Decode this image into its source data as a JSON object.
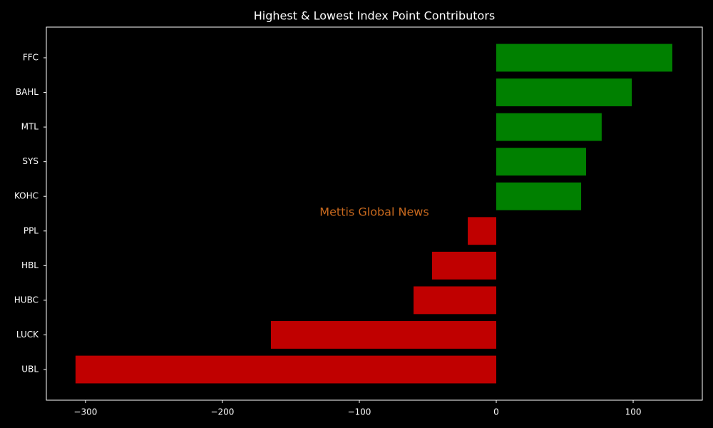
{
  "chart_data": {
    "type": "barh",
    "title": "Highest & Lowest Index Point Contributors",
    "annotation": "Mettis Global News",
    "categories": [
      "FFC",
      "BAHL",
      "MTL",
      "SYS",
      "KOHC",
      "PPL",
      "HBL",
      "HUBC",
      "LUCK",
      "UBL"
    ],
    "values": [
      128.6,
      99,
      77,
      65.6,
      62,
      -20.8,
      -46.9,
      -60.4,
      -164.6,
      -307.3
    ],
    "colors": [
      "#008000",
      "#008000",
      "#008000",
      "#008000",
      "#008000",
      "#c00000",
      "#c00000",
      "#c00000",
      "#c00000",
      "#c00000"
    ],
    "xlim": [
      -328.6,
      150.5
    ],
    "xticks": [
      {
        "value": -300,
        "label": "−300"
      },
      {
        "value": -200,
        "label": "−200"
      },
      {
        "value": -100,
        "label": "−100"
      },
      0,
      100
    ],
    "grid": false
  }
}
